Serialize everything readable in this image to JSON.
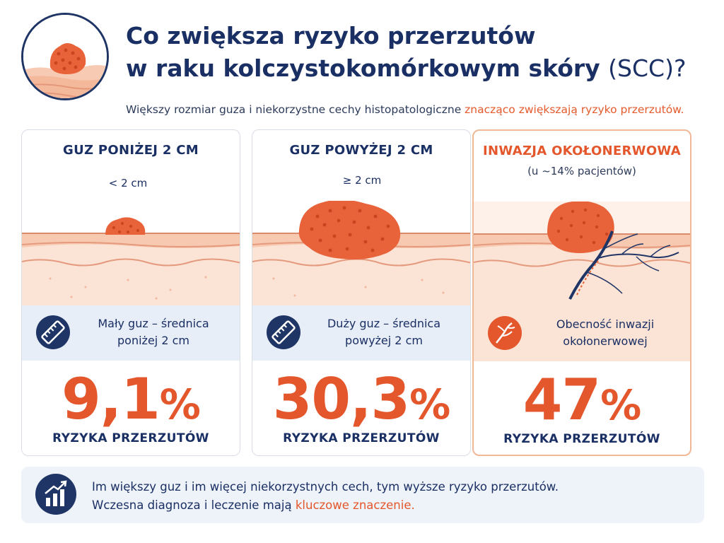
{
  "title": {
    "line1": "Co zwiększa ryzyko przerzutów",
    "line2_main": "w raku kolczystokomórkowym skóry ",
    "line2_paren": "(SCC)?"
  },
  "subtitle": {
    "text": "Większy rozmiar guza i niekorzystne cechy histopatologiczne ",
    "highlight": "znacząco zwiększają ryzyko przerzutów."
  },
  "cards": [
    {
      "heading": "GUZ PONIŻEJ 2 CM",
      "measure": "< 2 cm",
      "info_line1": "Mały guz – średnica",
      "info_line2": "poniżej 2 cm",
      "value": "9,1",
      "unit": "%",
      "risk_label": "RYZYKA PRZERZUTÓW",
      "icon": "ruler-icon"
    },
    {
      "heading": "GUZ POWYŻEJ 2 CM",
      "measure": "≥ 2 cm",
      "info_line1": "Duży guz – średnica",
      "info_line2": "powyżej 2 cm",
      "value": "30,3",
      "unit": "%",
      "risk_label": "RYZYKA PRZERZUTÓW",
      "icon": "ruler-icon"
    },
    {
      "heading": "INWAZJA OKOŁONERWOWA",
      "sub": "(u ~14% pacjentów)",
      "info_line1": "Obecność inwazji",
      "info_line2": "okołonerwowej",
      "value": "47",
      "unit": "%",
      "risk_label": "RYZYKA PRZERZUTÓW",
      "icon": "nerve-icon"
    }
  ],
  "footer": {
    "line1": "Im większy guz i im więcej niekorzystnych cech, tym wyższe ryzyko przerzutów.",
    "line2_main": "Wczesna diagnoza i leczenie mają ",
    "line2_highlight": "kluczowe znaczenie.",
    "icon": "growth-chart-icon"
  },
  "colors": {
    "navy": "#1a2f63",
    "accent": "#e4572c",
    "band_blue": "#e8eef8",
    "band_peach": "#fbe3d6"
  }
}
